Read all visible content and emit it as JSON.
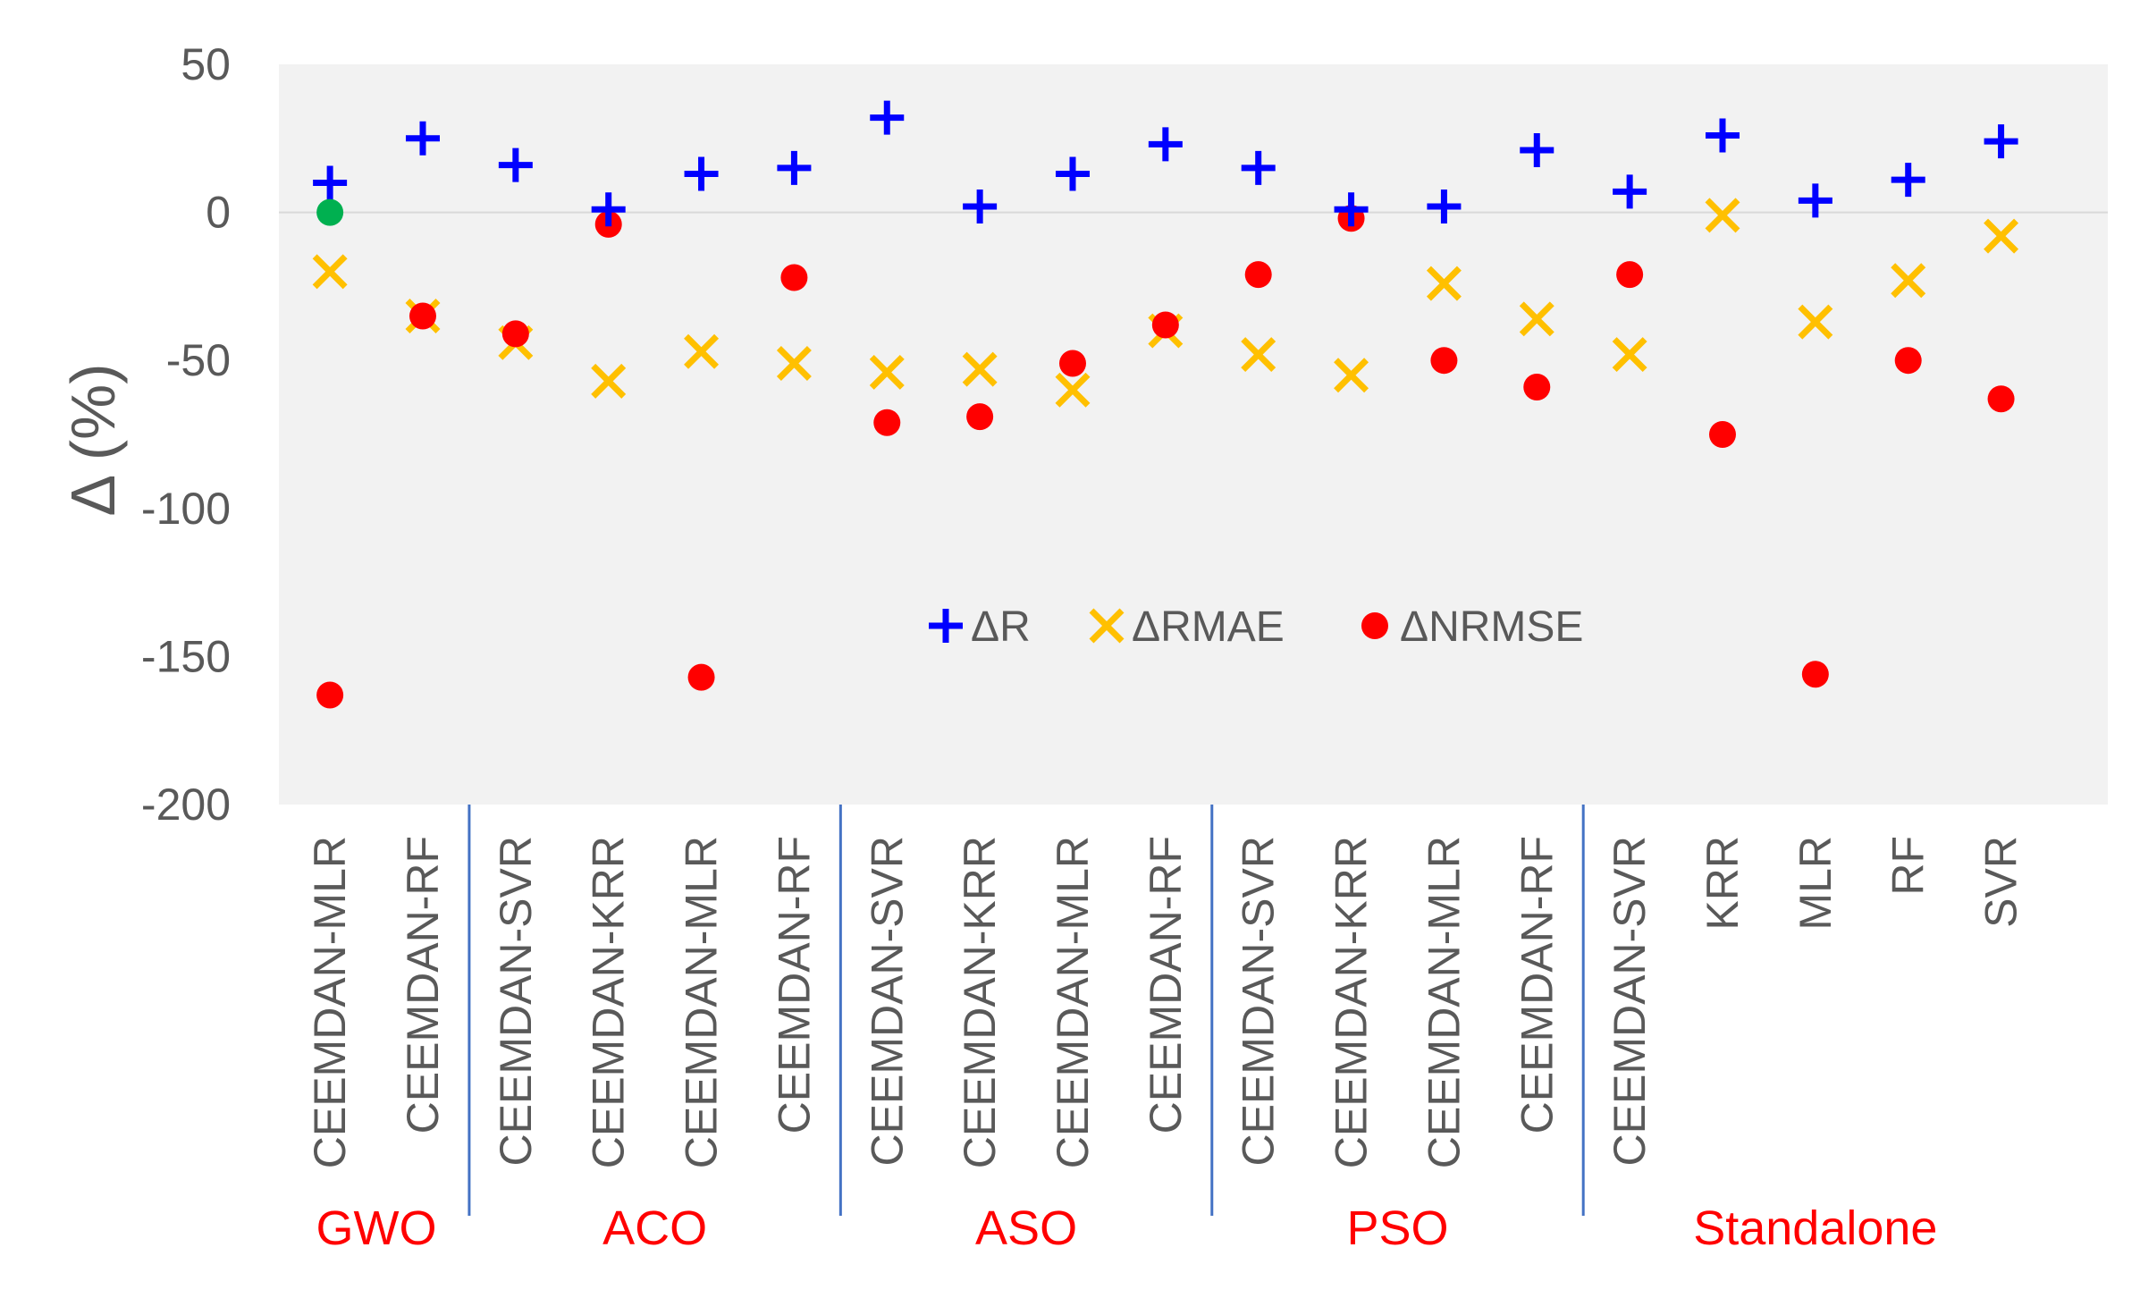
{
  "chart_data": {
    "type": "scatter",
    "title": "",
    "xlabel": "",
    "ylabel": "Δ (%)",
    "ylim": [
      -200,
      50
    ],
    "yticks": [
      50,
      0,
      -50,
      -100,
      -150,
      -200
    ],
    "grid": false,
    "legend_position": "center",
    "categories": [
      "CEEMDAN-MLR",
      "CEEMDAN-RF",
      "CEEMDAN-SVR",
      "CEEMDAN-KRR",
      "CEEMDAN-MLR",
      "CEEMDAN-RF",
      "CEEMDAN-SVR",
      "CEEMDAN-KRR",
      "CEEMDAN-MLR",
      "CEEMDAN-RF",
      "CEEMDAN-SVR",
      "CEEMDAN-KRR",
      "CEEMDAN-MLR",
      "CEEMDAN-RF",
      "CEEMDAN-SVR",
      "KRR",
      "MLR",
      "RF",
      "SVR"
    ],
    "groups": [
      {
        "label": "GWO",
        "start": 0,
        "end": 1
      },
      {
        "label": "ACO",
        "start": 2,
        "end": 5
      },
      {
        "label": "ASO",
        "start": 6,
        "end": 9
      },
      {
        "label": "PSO",
        "start": 10,
        "end": 13
      },
      {
        "label": "Standalone",
        "start": 14,
        "end": 18
      }
    ],
    "series": [
      {
        "name": "ΔR",
        "marker": "plus",
        "color": "#0000ff",
        "values": [
          10,
          25,
          16,
          1,
          13,
          15,
          32,
          2,
          13,
          23,
          15,
          1,
          2,
          21,
          7,
          26,
          4,
          11,
          24
        ]
      },
      {
        "name": "ΔRMAE",
        "marker": "x",
        "color": "#ffc000",
        "values": [
          -20,
          -35,
          -44,
          -57,
          -47,
          -51,
          -54,
          -53,
          -60,
          -40,
          -48,
          -55,
          -24,
          -36,
          -48,
          -1,
          -37,
          -23,
          -8
        ]
      },
      {
        "name": "ΔNRMSE",
        "marker": "dot",
        "color": "#ff0000",
        "values": [
          -163,
          -35,
          -41,
          -4,
          -157,
          -22,
          -71,
          -69,
          -51,
          -38,
          -21,
          -2,
          -50,
          -59,
          -21,
          -75,
          -156,
          -50,
          -63
        ]
      }
    ],
    "highlight": {
      "category_index": 0,
      "value": 0,
      "color": "#00b050"
    }
  }
}
